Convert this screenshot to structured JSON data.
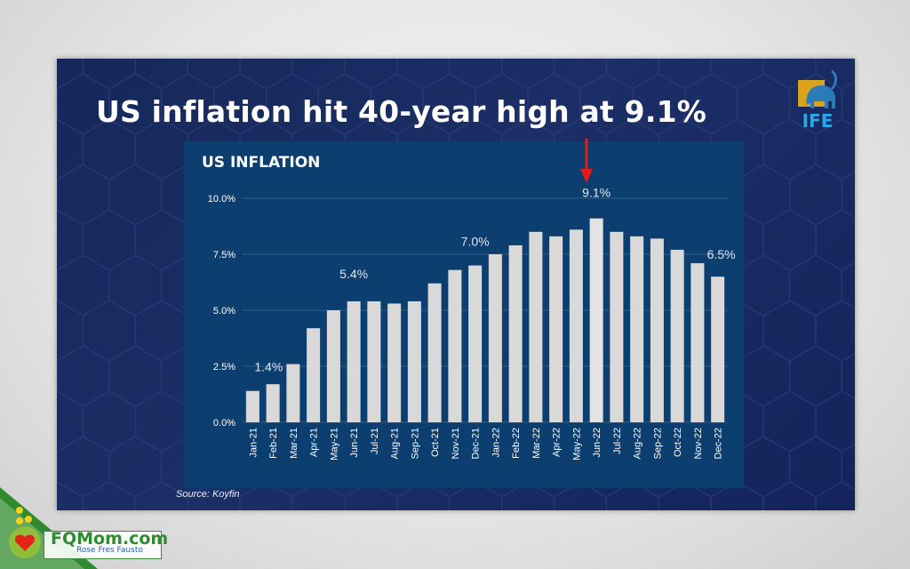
{
  "slide": {
    "title": "US inflation hit 40-year high at 9.1%",
    "logo_text": "IFE",
    "source": "Source: Koyfin"
  },
  "watermark": {
    "name": "FQMom.com",
    "sub": "Rose Fres Fausto"
  },
  "colors": {
    "slide_bg": "#16285a",
    "panel_bg": "#0c3f6f",
    "bar": "#d9d9d9",
    "arrow": "#e21b1b",
    "logo_accent": "#2ba8e8"
  },
  "chart_data": {
    "type": "bar",
    "title": "US INFLATION",
    "categories": [
      "Jan-21",
      "Feb-21",
      "Mar-21",
      "Apr-21",
      "May-21",
      "Jun-21",
      "Jul-21",
      "Aug-21",
      "Sep-21",
      "Oct-21",
      "Nov-21",
      "Dec-21",
      "Jan-22",
      "Feb-22",
      "Mar-22",
      "Apr-22",
      "May-22",
      "Jun-22",
      "Jul-22",
      "Aug-22",
      "Sep-22",
      "Oct-22",
      "Nov-22",
      "Dec-22"
    ],
    "values": [
      1.4,
      1.7,
      2.6,
      4.2,
      5.0,
      5.4,
      5.4,
      5.3,
      5.4,
      6.2,
      6.8,
      7.0,
      7.5,
      7.9,
      8.5,
      8.3,
      8.6,
      9.1,
      8.5,
      8.3,
      8.2,
      7.7,
      7.1,
      6.5
    ],
    "ylim": [
      0,
      10
    ],
    "yticks": [
      0,
      2.5,
      5,
      7.5,
      10
    ],
    "ytick_labels": [
      "0.0%",
      "2.5%",
      "5.0%",
      "7.5%",
      "10.0%"
    ],
    "grid": true,
    "annotations": [
      {
        "index": 0,
        "text": "1.4%"
      },
      {
        "index": 5,
        "text": "5.4%"
      },
      {
        "index": 11,
        "text": "7.0%"
      },
      {
        "index": 17,
        "text": "9.1%"
      },
      {
        "index": 23,
        "text": "6.5%"
      }
    ],
    "highlight_index": 17
  }
}
